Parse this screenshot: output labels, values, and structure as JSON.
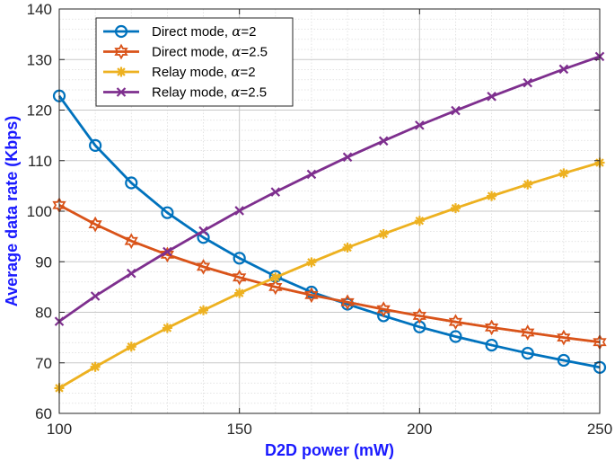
{
  "chart_data": {
    "type": "line",
    "xlabel": "D2D power (mW)",
    "ylabel": "Average data rate (Kbps)",
    "xlim": [
      100,
      250
    ],
    "ylim": [
      60,
      140
    ],
    "xticks": [
      "100",
      "150",
      "200",
      "250"
    ],
    "yticks": [
      "60",
      "70",
      "80",
      "90",
      "100",
      "110",
      "120",
      "130",
      "140"
    ],
    "grid": true,
    "grid_minor": true,
    "legend_position": "top-left",
    "x": [
      100,
      110,
      120,
      130,
      140,
      150,
      160,
      170,
      180,
      190,
      200,
      210,
      220,
      230,
      240,
      250
    ],
    "series": [
      {
        "name": "Direct mode, α=2",
        "name_prefix": "Direct mode, ",
        "name_alpha": "α",
        "name_suffix": "=2",
        "color": "#0072bd",
        "marker": "circle",
        "values": [
          122.8,
          113.0,
          105.6,
          99.7,
          94.8,
          90.7,
          87.1,
          84.0,
          81.6,
          79.3,
          77.1,
          75.2,
          73.5,
          71.9,
          70.5,
          69.1
        ]
      },
      {
        "name": "Direct mode, α=2.5",
        "name_prefix": "Direct mode, ",
        "name_alpha": "α",
        "name_suffix": "=2.5",
        "color": "#d95319",
        "marker": "hexagram",
        "values": [
          101.2,
          97.4,
          94.1,
          91.4,
          89.0,
          86.9,
          85.0,
          83.4,
          82.0,
          80.6,
          79.3,
          78.1,
          77.0,
          76.0,
          75.0,
          74.1
        ]
      },
      {
        "name": "Relay mode, α=2",
        "name_prefix": "Relay mode, ",
        "name_alpha": "α",
        "name_suffix": "=2",
        "color": "#edb120",
        "marker": "asterisk",
        "values": [
          65.0,
          69.2,
          73.2,
          76.9,
          80.4,
          83.8,
          86.9,
          89.9,
          92.8,
          95.5,
          98.1,
          100.6,
          103.0,
          105.3,
          107.5,
          109.6
        ]
      },
      {
        "name": "Relay mode, α=2.5",
        "name_prefix": "Relay mode, ",
        "name_alpha": "α",
        "name_suffix": "=2.5",
        "color": "#7e2f8e",
        "marker": "x",
        "values": [
          78.2,
          83.2,
          87.7,
          92.0,
          96.1,
          100.1,
          103.8,
          107.3,
          110.7,
          113.9,
          117.0,
          119.9,
          122.7,
          125.4,
          128.1,
          130.6
        ]
      }
    ]
  }
}
